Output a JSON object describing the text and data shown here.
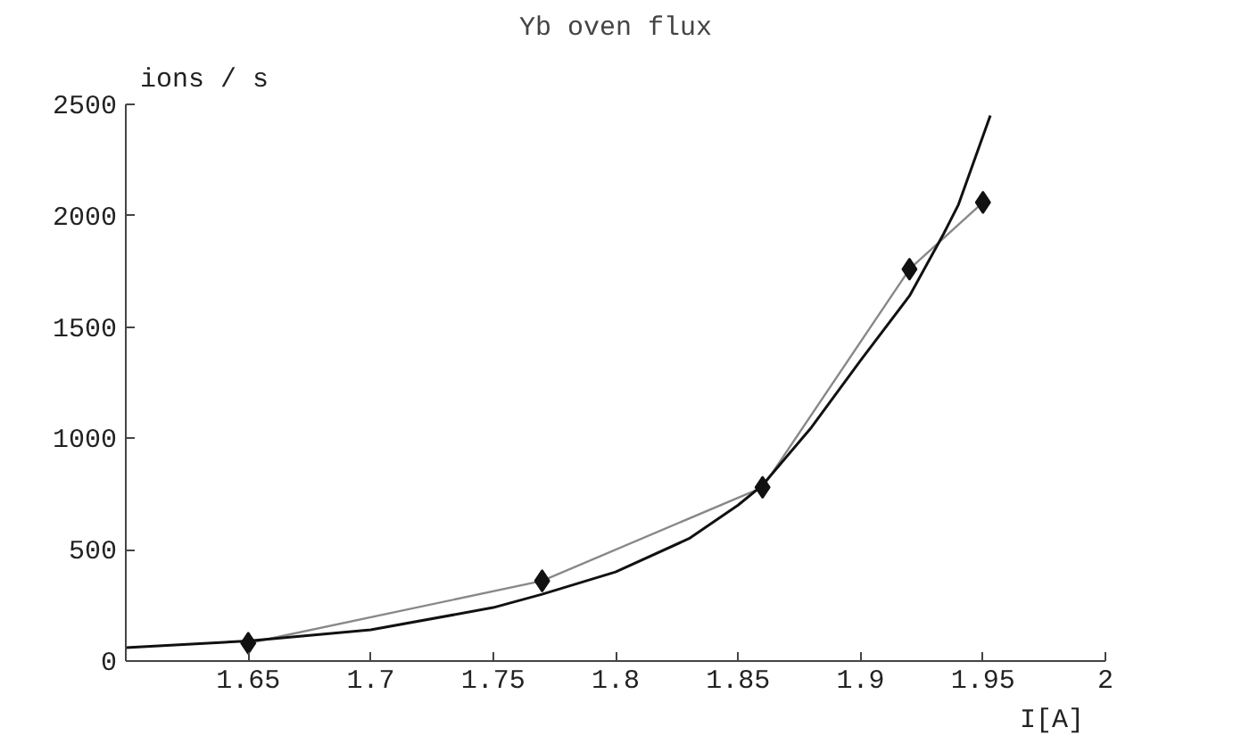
{
  "chart_data": {
    "type": "line",
    "title": "Yb oven flux",
    "xlabel": "I[A]",
    "ylabel": "ions / s",
    "xlim": [
      1.6,
      2.0
    ],
    "ylim": [
      0,
      2500
    ],
    "xticks": [
      1.65,
      1.7,
      1.75,
      1.8,
      1.85,
      1.9,
      1.95,
      2
    ],
    "yticks": [
      0,
      500,
      1000,
      1500,
      2000,
      2500
    ],
    "grid": false,
    "series": [
      {
        "color": "#888888",
        "marker": "diamond",
        "x": [
          1.65,
          1.77,
          1.86,
          1.92,
          1.95
        ],
        "values": [
          80,
          360,
          780,
          1760,
          2060
        ]
      },
      {
        "color": "#111111",
        "marker": "none",
        "x": [
          1.6,
          1.65,
          1.7,
          1.75,
          1.77,
          1.8,
          1.83,
          1.85,
          1.86,
          1.88,
          1.9,
          1.92,
          1.934,
          1.94,
          1.953
        ],
        "values": [
          60,
          90,
          140,
          240,
          300,
          400,
          550,
          700,
          790,
          1050,
          1350,
          1640,
          1920,
          2050,
          2450
        ]
      }
    ]
  }
}
